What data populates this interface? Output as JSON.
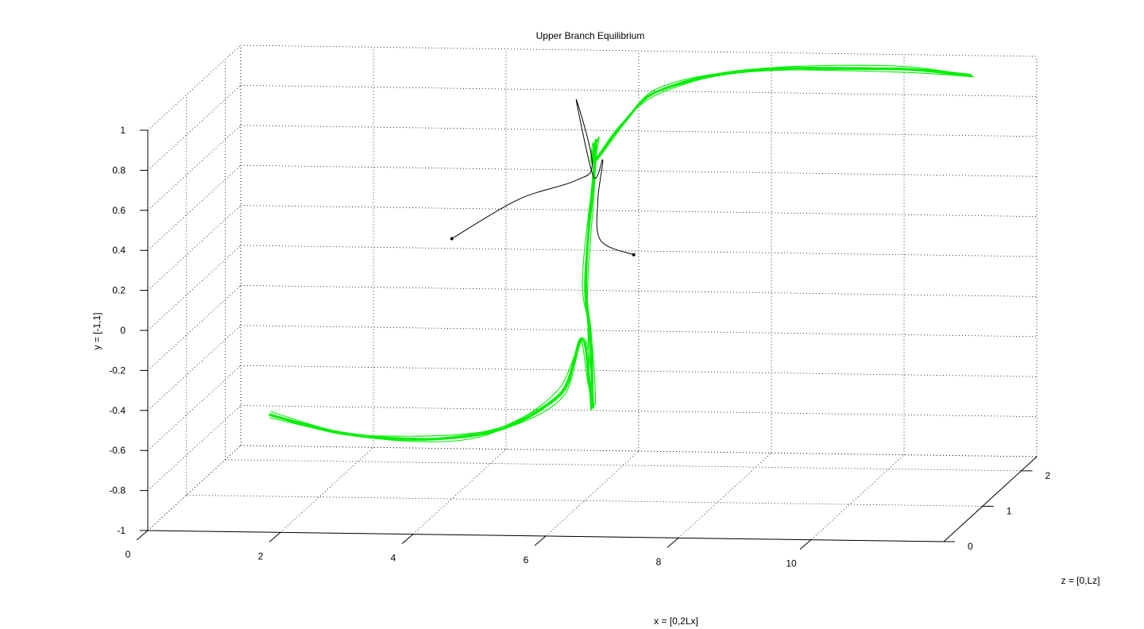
{
  "chart_data": {
    "type": "line3d",
    "title": "Upper Branch Equilibrium",
    "xlabel": "x = [0,2Lx]",
    "ylabel": "y = [-1,1]",
    "zlabel": "z = [0,Lz]",
    "xlim": [
      0,
      12
    ],
    "ylim": [
      -1,
      1
    ],
    "zlim": [
      0,
      2.4
    ],
    "x_ticks": [
      "0",
      "2",
      "4",
      "6",
      "8",
      "10"
    ],
    "y_ticks": [
      "-1",
      "-0.8",
      "-0.6",
      "-0.4",
      "-0.2",
      "0",
      "0.2",
      "0.4",
      "0.6",
      "0.8",
      "1"
    ],
    "z_ticks": [
      "0",
      "1",
      "2"
    ],
    "grid": true,
    "box": "open (back panes with dotted grid)",
    "series": [
      {
        "color": "#00ee00",
        "style": "bundle of many nearly coincident solid lines",
        "shape": "S-shaped vortex curve with two loops near the center",
        "points_xyz": [
          [
            1.5,
            -0.52,
            0.6
          ],
          [
            2.5,
            -0.6,
            0.6
          ],
          [
            3.5,
            -0.62,
            0.55
          ],
          [
            4.5,
            -0.6,
            0.5
          ],
          [
            5.3,
            -0.52,
            0.45
          ],
          [
            6.0,
            -0.35,
            0.42
          ],
          [
            6.3,
            -0.08,
            0.4
          ],
          [
            6.5,
            -0.3,
            0.3
          ],
          [
            6.6,
            -0.38,
            0.2
          ],
          [
            6.45,
            -0.05,
            0.35
          ],
          [
            6.3,
            0.2,
            0.5
          ],
          [
            6.15,
            0.62,
            1.0
          ],
          [
            6.0,
            0.75,
            1.3
          ],
          [
            5.9,
            0.62,
            1.4
          ],
          [
            6.3,
            0.8,
            1.5
          ],
          [
            6.8,
            0.95,
            1.6
          ],
          [
            8.0,
            1.02,
            1.8
          ],
          [
            10.0,
            1.0,
            2.0
          ],
          [
            11.2,
            0.95,
            2.1
          ]
        ]
      },
      {
        "color": "#000000",
        "style": "single thin solid line with dot markers at both ends",
        "shape": "curve from left endpoint up into loop, down through center",
        "points_xyz": [
          [
            4.0,
            0.3,
            1.0
          ],
          [
            5.0,
            0.5,
            1.0
          ],
          [
            5.8,
            0.58,
            1.1
          ],
          [
            6.0,
            0.65,
            1.2
          ],
          [
            5.7,
            0.95,
            1.3
          ],
          [
            5.9,
            0.55,
            1.4
          ],
          [
            6.1,
            0.65,
            1.3
          ],
          [
            6.2,
            0.5,
            1.0
          ],
          [
            6.3,
            0.32,
            0.9
          ],
          [
            6.8,
            0.25,
            0.9
          ]
        ]
      }
    ]
  }
}
